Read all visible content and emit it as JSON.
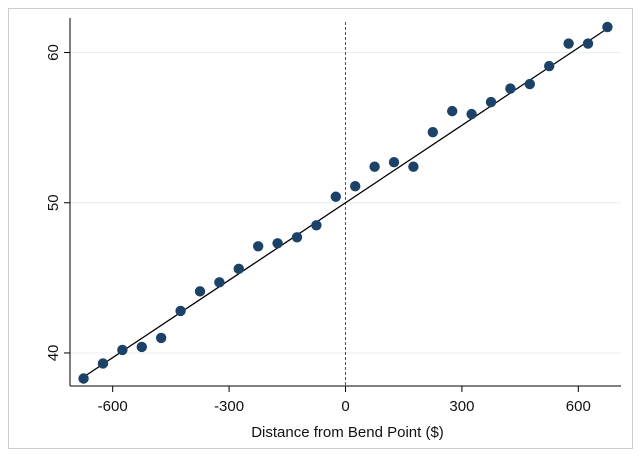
{
  "chart_data": {
    "type": "scatter",
    "title": "",
    "xlabel": "Distance from Bend Point ($)",
    "ylabel": "",
    "xlim": [
      -710,
      710
    ],
    "ylim": [
      37.8,
      62.3
    ],
    "grid": true,
    "legend": "none",
    "x_ticks": [
      -600,
      -300,
      0,
      300,
      600
    ],
    "x_tick_labels": [
      "-600",
      "-300",
      "0",
      "300",
      "600"
    ],
    "y_ticks": [
      40,
      50,
      60
    ],
    "y_tick_labels": [
      "40",
      "50",
      "60"
    ],
    "bend_point": 0,
    "points": {
      "x": [
        -675,
        -625,
        -575,
        -525,
        -475,
        -425,
        -375,
        -325,
        -275,
        -225,
        -175,
        -125,
        -75,
        -25,
        25,
        75,
        125,
        175,
        225,
        275,
        325,
        375,
        425,
        475,
        525,
        575,
        625,
        675
      ],
      "y": [
        38.3,
        39.3,
        40.2,
        40.4,
        41.0,
        42.8,
        44.1,
        44.7,
        45.6,
        47.1,
        47.3,
        47.7,
        48.5,
        50.4,
        51.1,
        52.4,
        52.7,
        52.4,
        54.7,
        56.1,
        55.9,
        56.7,
        57.6,
        57.9,
        59.1,
        60.6,
        60.6,
        61.7
      ]
    },
    "fit_line": {
      "x": [
        -675,
        675
      ],
      "y": [
        38.4,
        61.6
      ]
    },
    "colors": {
      "points": "#1c4268",
      "fit_line": "#000000",
      "bend_line": "#cc1a55",
      "grid": "#e8eef2",
      "frame": "#cccccc",
      "axis": "#000000"
    }
  }
}
